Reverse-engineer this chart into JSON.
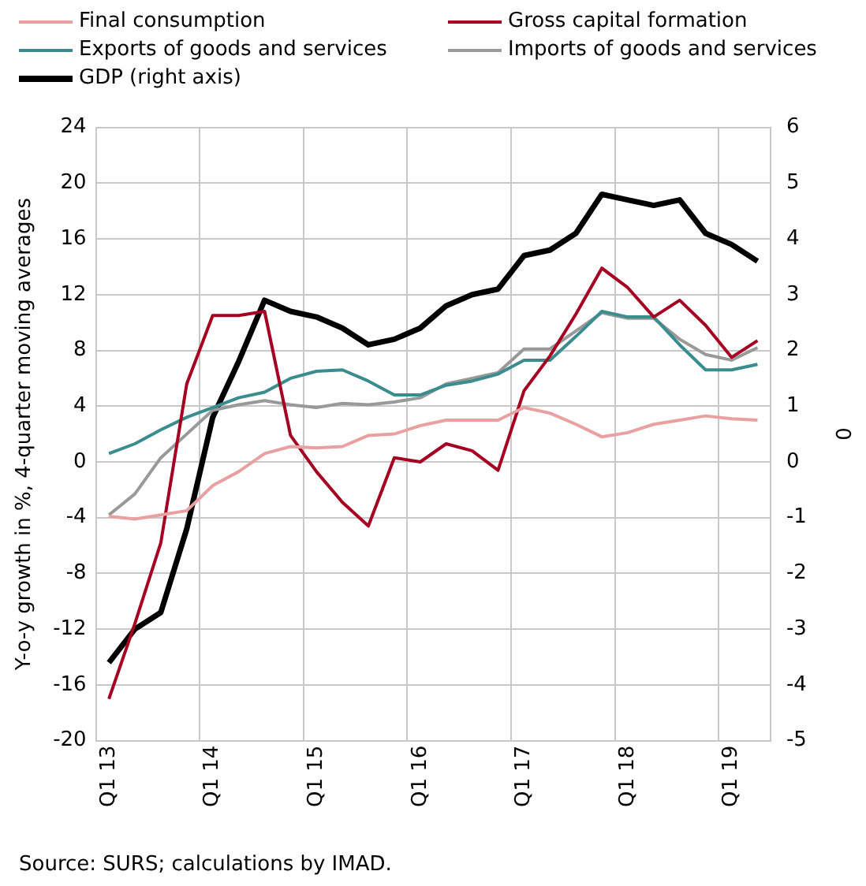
{
  "chart_data": {
    "type": "line",
    "ylabel": "Y-o-y growth in %, 4-quarter moving averages",
    "y2label": "0",
    "annotations": [
      "Source: SURS; calculations  by IMAD."
    ],
    "categories": [
      "Q1 13",
      null,
      null,
      null,
      "Q1 14",
      null,
      null,
      null,
      "Q1 15",
      null,
      null,
      null,
      "Q1 16",
      null,
      null,
      null,
      "Q1 17",
      null,
      null,
      null,
      "Q1 18",
      null,
      null,
      null,
      "Q1 19",
      null
    ],
    "series": [
      {
        "name": "Final consumption",
        "color": "#e8a0a0",
        "values": [
          -3.9,
          -4.1,
          -3.8,
          -3.5,
          -1.7,
          -0.7,
          0.6,
          1.1,
          1.0,
          1.1,
          1.9,
          2.0,
          2.6,
          3.0,
          3.0,
          3.0,
          3.9,
          3.5,
          2.7,
          1.8,
          2.1,
          2.7,
          3.0,
          3.3,
          3.1,
          3.0
        ]
      },
      {
        "name": "Gross capital formation",
        "color": "#a50021",
        "values": [
          -17.0,
          -11.6,
          -5.8,
          5.6,
          10.5,
          10.5,
          10.8,
          1.9,
          -0.7,
          -2.9,
          -4.6,
          0.3,
          0.0,
          1.3,
          0.8,
          -0.6,
          5.1,
          7.6,
          10.6,
          13.9,
          12.5,
          10.4,
          11.6,
          9.8,
          7.5,
          8.7
        ]
      },
      {
        "name": "Exports of goods and services",
        "color": "#3a8c8e",
        "values": [
          0.6,
          1.3,
          2.3,
          3.2,
          3.9,
          4.6,
          5.0,
          6.0,
          6.5,
          6.6,
          5.8,
          4.8,
          4.8,
          5.5,
          5.8,
          6.3,
          7.3,
          7.3,
          9.0,
          10.8,
          10.4,
          10.4,
          8.4,
          6.6,
          6.6,
          7.0
        ]
      },
      {
        "name": "Imports of goods and services",
        "color": "#999999",
        "values": [
          -3.8,
          -2.3,
          0.3,
          2.0,
          3.7,
          4.1,
          4.4,
          4.1,
          3.9,
          4.2,
          4.1,
          4.3,
          4.6,
          5.6,
          6.0,
          6.4,
          8.1,
          8.1,
          9.4,
          10.7,
          10.3,
          10.3,
          8.8,
          7.7,
          7.3,
          8.2
        ]
      },
      {
        "name": "GDP (right axis)",
        "color": "#000000",
        "axis": "y2",
        "values": [
          -3.6,
          -3.0,
          -2.7,
          -1.2,
          0.8,
          1.8,
          2.9,
          2.7,
          2.6,
          2.4,
          2.1,
          2.2,
          2.4,
          2.8,
          3.0,
          3.1,
          3.7,
          3.8,
          4.1,
          4.8,
          4.7,
          4.6,
          4.7,
          4.1,
          3.9,
          3.6
        ]
      }
    ],
    "ylim": [
      -20,
      24
    ],
    "yticks": [
      -20,
      -16,
      -12,
      -8,
      -4,
      0,
      4,
      8,
      12,
      16,
      20,
      24
    ],
    "y2lim": [
      -5,
      6
    ],
    "y2ticks": [
      -5,
      -4,
      -3,
      -2,
      -1,
      0,
      1,
      2,
      3,
      4,
      5,
      6
    ],
    "grid": true,
    "legend": "top",
    "marker": "none",
    "line_style": "solid"
  }
}
